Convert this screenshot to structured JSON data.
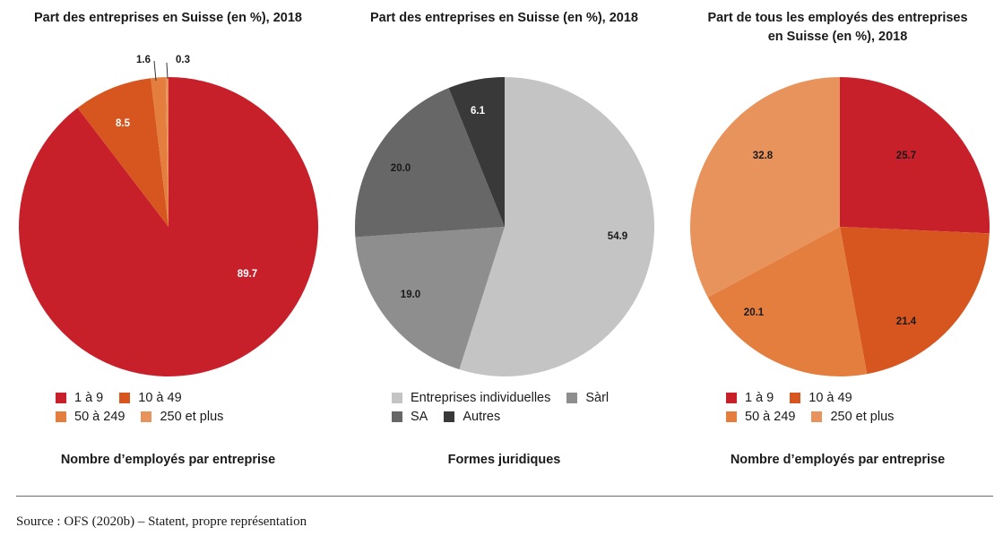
{
  "chart_data": [
    {
      "type": "pie",
      "title": "Part des entreprises en Suisse (en %), 2018",
      "xlabel": "Nombre d’employés par entreprise",
      "labels": [
        "1 à 9",
        "10 à 49",
        "50 à 249",
        "250 et plus"
      ],
      "values": [
        89.7,
        8.5,
        1.6,
        0.3
      ],
      "value_labels": [
        "89.7",
        "8.5",
        "1.6",
        "0.3"
      ],
      "colors": [
        "#c8202a",
        "#d7561f",
        "#e37e3f",
        "#e8925c"
      ],
      "legend_rows": [
        [
          0,
          1
        ],
        [
          2,
          3
        ]
      ]
    },
    {
      "type": "pie",
      "title": "Part des entreprises en Suisse (en %), 2018",
      "xlabel": "Formes juridiques",
      "labels": [
        "Entreprises individuelles",
        "Sàrl",
        "SA",
        "Autres"
      ],
      "values": [
        54.9,
        19.0,
        20.0,
        6.1
      ],
      "value_labels": [
        "54.9",
        "19.0",
        "20.0",
        "6.1"
      ],
      "colors": [
        "#c4c4c4",
        "#8e8e8e",
        "#676767",
        "#393939"
      ],
      "legend_rows": [
        [
          0,
          1
        ],
        [
          2,
          3
        ]
      ]
    },
    {
      "type": "pie",
      "title": "Part de tous les employés des entreprises\nen Suisse (en %), 2018",
      "xlabel": "Nombre d’employés par entreprise",
      "labels": [
        "1 à 9",
        "10 à 49",
        "50 à 249",
        "250 et plus"
      ],
      "values": [
        25.7,
        21.4,
        20.1,
        32.8
      ],
      "value_labels": [
        "25.7",
        "21.4",
        "20.1",
        "32.8"
      ],
      "colors": [
        "#c8202a",
        "#d7561f",
        "#e37e3f",
        "#e8925c"
      ],
      "legend_rows": [
        [
          0,
          1
        ],
        [
          2,
          3
        ]
      ]
    }
  ],
  "source": "Source : OFS (2020b) – Statent, propre représentation"
}
